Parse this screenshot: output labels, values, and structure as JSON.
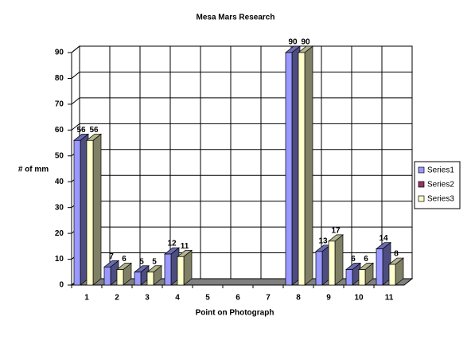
{
  "chart_data": {
    "type": "bar3d",
    "title": "Mesa Mars Research",
    "x_label": "Point on Photograph",
    "y_label": "# of mm",
    "categories": [
      "1",
      "2",
      "3",
      "4",
      "5",
      "6",
      "7",
      "8",
      "9",
      "10",
      "11"
    ],
    "series": [
      {
        "name": "Series1",
        "color": "#9999ff",
        "values": [
          56,
          7,
          5,
          12,
          null,
          null,
          null,
          90,
          13,
          6,
          14
        ]
      },
      {
        "name": "Series2",
        "color": "#993366",
        "values": [
          null,
          null,
          null,
          null,
          null,
          null,
          null,
          null,
          null,
          null,
          null
        ]
      },
      {
        "name": "Series3",
        "color": "#ffffcc",
        "values": [
          56,
          6,
          5,
          11,
          null,
          null,
          null,
          90,
          17,
          6,
          8
        ]
      }
    ],
    "ylim": [
      0,
      90
    ],
    "yticks": [
      0,
      10,
      20,
      30,
      40,
      50,
      60,
      70,
      80,
      90
    ],
    "grid": true,
    "legend": "right",
    "data_labels": true
  }
}
